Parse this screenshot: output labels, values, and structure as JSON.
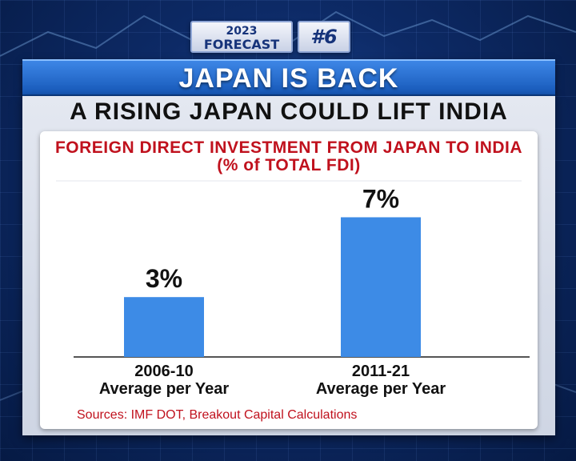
{
  "forecast_tag": {
    "year": "2023",
    "label": "FORECAST",
    "number": "#6"
  },
  "headline": "JAPAN IS BACK",
  "subtitle": "A RISING JAPAN COULD LIFT INDIA",
  "colors": {
    "bar": "#3d8be6",
    "title_red": "#c0111d",
    "headline_blue": "#1f6fd6"
  },
  "chart_data": {
    "type": "bar",
    "title": "FOREIGN DIRECT INVESTMENT FROM JAPAN TO INDIA",
    "subtitle": "(% of TOTAL FDI)",
    "categories": [
      "2006-10",
      "2011-21"
    ],
    "category_sublabels": [
      "Average per Year",
      "Average per Year"
    ],
    "values": [
      3,
      7
    ],
    "data_labels": [
      "3%",
      "7%"
    ],
    "ylim": [
      0,
      7.5
    ],
    "grid": false,
    "source": "Sources: IMF DOT, Breakout Capital Calculations"
  }
}
